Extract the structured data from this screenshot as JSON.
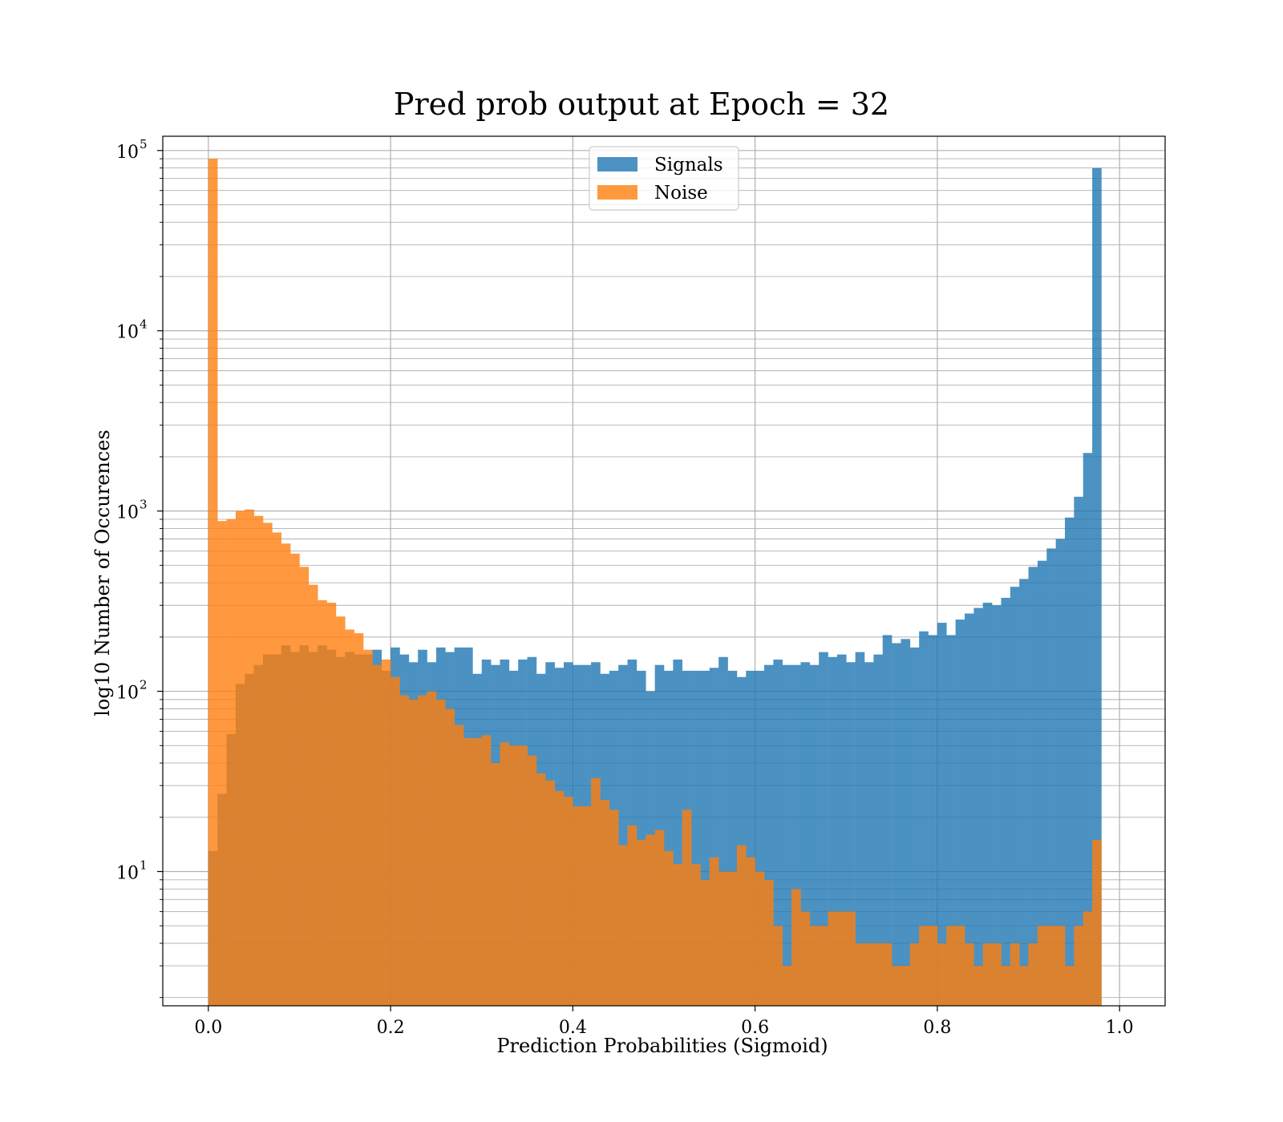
{
  "chart_data": {
    "type": "bar",
    "title": "Pred prob output at Epoch = 32",
    "xlabel": "Prediction Probabilities (Sigmoid)",
    "ylabel": "log10 Number of Occurences",
    "yscale": "log",
    "xlim": [
      -0.05,
      1.05
    ],
    "ylim": [
      1.8,
      120000
    ],
    "grid": true,
    "legend": "upper center",
    "bin_width": 0.01,
    "xticks": [
      0.0,
      0.2,
      0.4,
      0.6,
      0.8,
      1.0
    ],
    "xtick_labels": [
      "0.0",
      "0.2",
      "0.4",
      "0.6",
      "0.8",
      "1.0"
    ],
    "yticks": [
      {
        "value": 10,
        "base": "10",
        "exp": "1"
      },
      {
        "value": 100,
        "base": "10",
        "exp": "2"
      },
      {
        "value": 1000,
        "base": "10",
        "exp": "3"
      },
      {
        "value": 10000,
        "base": "10",
        "exp": "4"
      },
      {
        "value": 100000,
        "base": "10",
        "exp": "5"
      }
    ],
    "series": [
      {
        "name": "Signals",
        "color": "#1f77b4",
        "values": [
          13,
          27,
          58,
          110,
          125,
          140,
          160,
          160,
          180,
          165,
          180,
          165,
          180,
          170,
          155,
          165,
          160,
          160,
          170,
          130,
          175,
          160,
          145,
          170,
          145,
          175,
          165,
          175,
          175,
          125,
          150,
          140,
          150,
          130,
          150,
          155,
          125,
          145,
          135,
          145,
          140,
          140,
          145,
          125,
          130,
          140,
          150,
          130,
          100,
          140,
          130,
          150,
          130,
          130,
          130,
          135,
          155,
          130,
          120,
          130,
          130,
          140,
          150,
          140,
          140,
          145,
          140,
          165,
          155,
          160,
          145,
          165,
          145,
          160,
          205,
          185,
          195,
          175,
          215,
          205,
          240,
          205,
          250,
          270,
          290,
          310,
          300,
          330,
          380,
          420,
          490,
          530,
          620,
          700,
          920,
          1200,
          2100,
          80000
        ]
      },
      {
        "name": "Noise",
        "color": "#ff7f0e",
        "values": [
          90000,
          880,
          900,
          1000,
          1020,
          940,
          860,
          760,
          660,
          580,
          490,
          390,
          320,
          310,
          260,
          220,
          210,
          170,
          140,
          150,
          120,
          95,
          90,
          95,
          100,
          90,
          80,
          65,
          55,
          55,
          57,
          40,
          52,
          50,
          50,
          44,
          35,
          32,
          28,
          26,
          23,
          23,
          33,
          25,
          22,
          14,
          18,
          15,
          16,
          17,
          13,
          11,
          22,
          11,
          9,
          12,
          10,
          10,
          14,
          12,
          10,
          9,
          5,
          3,
          8,
          6,
          5,
          5,
          6,
          6,
          6,
          4,
          4,
          4,
          4,
          3,
          3,
          4,
          5,
          5,
          4,
          5,
          5,
          4,
          3,
          4,
          4,
          3,
          4,
          3,
          4,
          5,
          5,
          5,
          3,
          5,
          6,
          15
        ]
      }
    ]
  }
}
